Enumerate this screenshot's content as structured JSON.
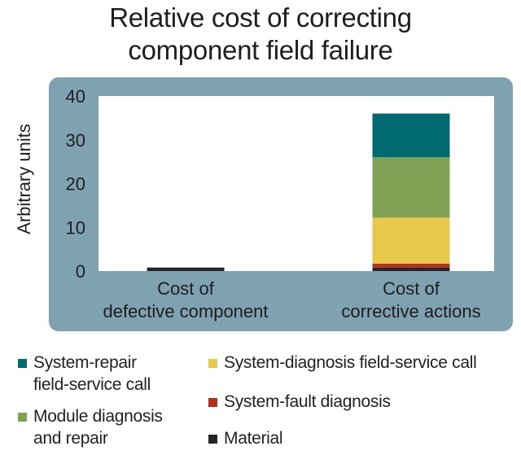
{
  "chart_data": {
    "type": "bar",
    "stacked": true,
    "title": [
      "Relative cost of correcting",
      "component field failure"
    ],
    "ylabel": "Arbitrary units",
    "xlabel": "",
    "ylim": [
      0,
      40
    ],
    "yticks": [
      0,
      10,
      20,
      30,
      40
    ],
    "grid": false,
    "legend_position": "bottom",
    "categories": [
      [
        "Cost of",
        "defective component"
      ],
      [
        "Cost of",
        "corrective actions"
      ]
    ],
    "series": [
      {
        "name": "Material",
        "color": "#252525",
        "values": [
          0.8,
          0.8
        ]
      },
      {
        "name": "System-fault diagnosis",
        "color": "#b5301f",
        "values": [
          0,
          0.9
        ]
      },
      {
        "name": "System-diagnosis field-service call",
        "color": "#e7c84a",
        "values": [
          0,
          10.5
        ]
      },
      {
        "name": "Module diagnosis and repair",
        "color": "#7fa255",
        "values": [
          0,
          13.8
        ]
      },
      {
        "name": "System-repair field-service call",
        "color": "#006a72",
        "values": [
          0,
          10.0
        ]
      }
    ]
  },
  "legend": [
    {
      "label": [
        "System-repair",
        "field-service call"
      ],
      "color": "#006a72"
    },
    {
      "label": [
        "System-diagnosis field-service call"
      ],
      "color": "#e7c84a"
    },
    {
      "label": [
        "Module diagnosis",
        "and repair"
      ],
      "color": "#7fa255"
    },
    {
      "label": [
        "System-fault diagnosis"
      ],
      "color": "#b5301f"
    },
    {
      "label": [
        "Material"
      ],
      "color": "#252525"
    }
  ]
}
